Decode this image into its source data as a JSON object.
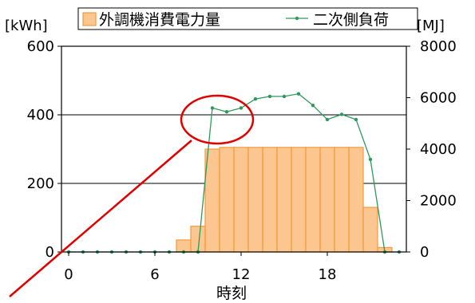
{
  "chart_data": {
    "type": "bar+line",
    "x": [
      0,
      1,
      2,
      3,
      4,
      5,
      6,
      7,
      8,
      9,
      10,
      11,
      12,
      13,
      14,
      15,
      16,
      17,
      18,
      19,
      20,
      21,
      22,
      23
    ],
    "xlabel": "時刻",
    "xticks": [
      "0",
      "6",
      "12",
      "18"
    ],
    "xtick_values": [
      0,
      6,
      12,
      18
    ],
    "xlim": [
      -0.5,
      23.5
    ],
    "y_left": {
      "unit": "[kWh]",
      "ylim": [
        0,
        600
      ],
      "ticks": [
        "0",
        "200",
        "400",
        "600"
      ],
      "tick_values": [
        0,
        200,
        400,
        600
      ]
    },
    "y_right": {
      "unit": "[MJ]",
      "ylim": [
        0,
        8000
      ],
      "ticks": [
        "0",
        "2000",
        "4000",
        "6000",
        "8000"
      ],
      "tick_values": [
        0,
        2000,
        4000,
        6000,
        8000
      ]
    },
    "series": [
      {
        "name": "外調機消費電力量",
        "kind": "bar",
        "axis": "left",
        "color": "#fbc690",
        "edge_color": "#f39a3c",
        "values": [
          0,
          0,
          0,
          0,
          0,
          0,
          0,
          0,
          35,
          75,
          300,
          305,
          305,
          305,
          305,
          305,
          305,
          305,
          305,
          305,
          305,
          130,
          13,
          0
        ]
      },
      {
        "name": "二次側負荷",
        "kind": "line",
        "axis": "right",
        "color": "#2e9a5a",
        "values": [
          0,
          0,
          0,
          0,
          0,
          0,
          0,
          0,
          0,
          0,
          5600,
          5450,
          5600,
          5950,
          6050,
          6050,
          6150,
          5700,
          5150,
          5350,
          5150,
          3600,
          0,
          0
        ]
      }
    ],
    "grid": "horizontal",
    "legend": "top"
  },
  "annotation": {
    "shape": "circle-with-pointer",
    "color": "#e00000"
  }
}
